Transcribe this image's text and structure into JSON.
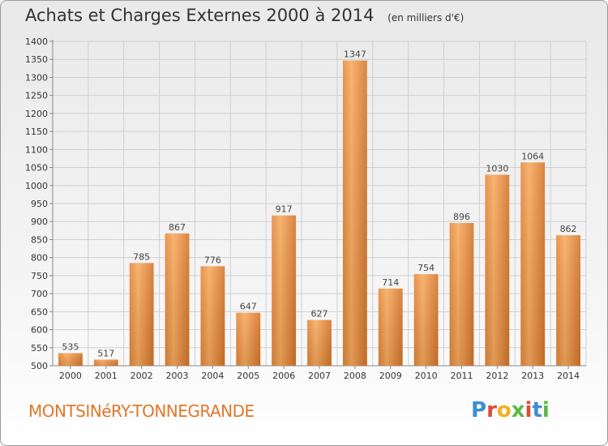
{
  "header": {
    "title": "Achats et Charges Externes 2000 à 2014",
    "subtitle": "(en milliers d'€)"
  },
  "footer": {
    "commune": "MONTSINéRY-TONNEGRANDE",
    "logo_letters": [
      "P",
      "r",
      "o",
      "x",
      "i",
      "t",
      "i"
    ],
    "logo_colors": [
      "#3a8fd6",
      "#e04a3a",
      "#f2b01e",
      "#5ab84a",
      "#e04a3a",
      "#3a8fd6",
      "#5ab84a"
    ]
  },
  "colors": {
    "bar_light": "#f7a75a",
    "bar_dark": "#d9782a",
    "grid": "#cfcfcf",
    "axis": "#888888"
  },
  "chart_data": {
    "type": "bar",
    "title": "Achats et Charges Externes 2000 à 2014",
    "subtitle": "(en milliers d'€)",
    "categories": [
      "2000",
      "2001",
      "2002",
      "2003",
      "2004",
      "2005",
      "2006",
      "2007",
      "2008",
      "2009",
      "2010",
      "2011",
      "2012",
      "2013",
      "2014"
    ],
    "values": [
      535,
      517,
      785,
      867,
      776,
      647,
      917,
      627,
      1347,
      714,
      754,
      896,
      1030,
      1064,
      862
    ],
    "ylim": [
      500,
      1400
    ],
    "yticks": [
      500,
      550,
      600,
      650,
      700,
      750,
      800,
      850,
      900,
      950,
      1000,
      1050,
      1100,
      1150,
      1200,
      1250,
      1300,
      1350,
      1400
    ],
    "grid": true,
    "xlabel": "",
    "ylabel": ""
  }
}
